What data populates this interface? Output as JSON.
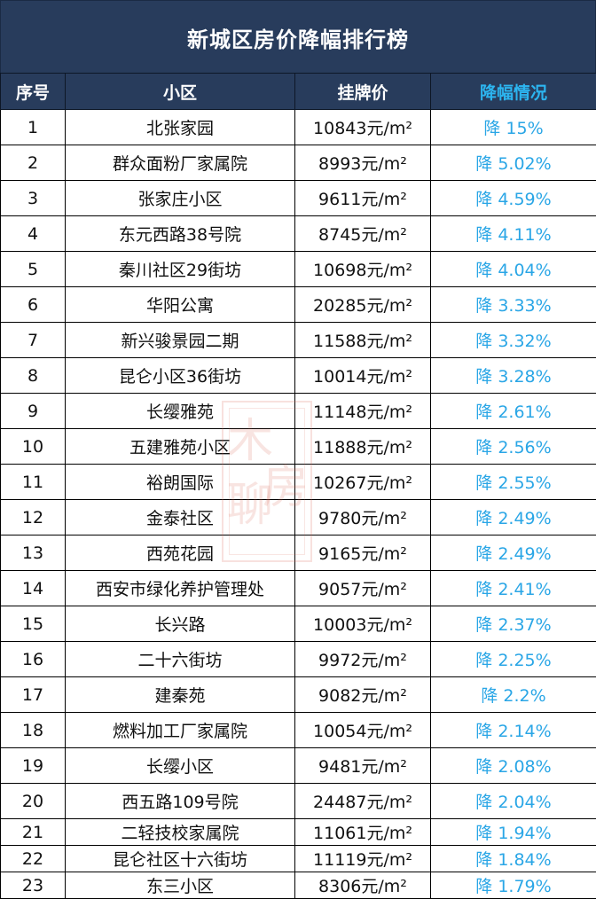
{
  "title": "新城区房价降幅排行榜",
  "headers": {
    "rank": "序号",
    "community": "小区",
    "price": "挂牌价",
    "drop": "降幅情况"
  },
  "colors": {
    "header_bg": "#283c5c",
    "header_text": "#ffffff",
    "drop_text": "#2aa6e6"
  },
  "watermark": {
    "char1": "木",
    "char2": "聊",
    "char3": "房"
  },
  "rows": [
    {
      "rank": "1",
      "community": "北张家园",
      "price": "10843元/m²",
      "drop": "降 15%"
    },
    {
      "rank": "2",
      "community": "群众面粉厂家属院",
      "price": "8993元/m²",
      "drop": "降 5.02%"
    },
    {
      "rank": "3",
      "community": "张家庄小区",
      "price": "9611元/m²",
      "drop": "降 4.59%"
    },
    {
      "rank": "4",
      "community": "东元西路38号院",
      "price": "8745元/m²",
      "drop": "降 4.11%"
    },
    {
      "rank": "5",
      "community": "秦川社区29街坊",
      "price": "10698元/m²",
      "drop": "降 4.04%"
    },
    {
      "rank": "6",
      "community": "华阳公寓",
      "price": "20285元/m²",
      "drop": "降 3.33%"
    },
    {
      "rank": "7",
      "community": "新兴骏景园二期",
      "price": "11588元/m²",
      "drop": "降 3.32%"
    },
    {
      "rank": "8",
      "community": "昆仑小区36街坊",
      "price": "10014元/m²",
      "drop": "降 3.28%"
    },
    {
      "rank": "9",
      "community": "长缨雅苑",
      "price": "11148元/m²",
      "drop": "降 2.61%"
    },
    {
      "rank": "10",
      "community": "五建雅苑小区",
      "price": "11888元/m²",
      "drop": "降 2.56%"
    },
    {
      "rank": "11",
      "community": "裕朗国际",
      "price": "10267元/m²",
      "drop": "降 2.55%"
    },
    {
      "rank": "12",
      "community": "金泰社区",
      "price": "9780元/m²",
      "drop": "降 2.49%"
    },
    {
      "rank": "13",
      "community": "西苑花园",
      "price": "9165元/m²",
      "drop": "降 2.49%"
    },
    {
      "rank": "14",
      "community": "西安市绿化养护管理处",
      "price": "9057元/m²",
      "drop": "降 2.41%"
    },
    {
      "rank": "15",
      "community": "长兴路",
      "price": "10003元/m²",
      "drop": "降 2.37%"
    },
    {
      "rank": "16",
      "community": "二十六街坊",
      "price": "9972元/m²",
      "drop": "降 2.25%"
    },
    {
      "rank": "17",
      "community": "建秦苑",
      "price": "9082元/m²",
      "drop": "降 2.2%"
    },
    {
      "rank": "18",
      "community": "燃料加工厂家属院",
      "price": "10054元/m²",
      "drop": "降 2.14%"
    },
    {
      "rank": "19",
      "community": "长缨小区",
      "price": "9481元/m²",
      "drop": "降 2.08%"
    },
    {
      "rank": "20",
      "community": "西五路109号院",
      "price": "24487元/m²",
      "drop": "降 2.04%"
    },
    {
      "rank": "21",
      "community": "二轻技校家属院",
      "price": "11061元/m²",
      "drop": "降 1.94%"
    },
    {
      "rank": "22",
      "community": "昆仑社区十六街坊",
      "price": "11119元/m²",
      "drop": "降 1.84%"
    },
    {
      "rank": "23",
      "community": "东三小区",
      "price": "8306元/m²",
      "drop": "降 1.79%"
    }
  ]
}
